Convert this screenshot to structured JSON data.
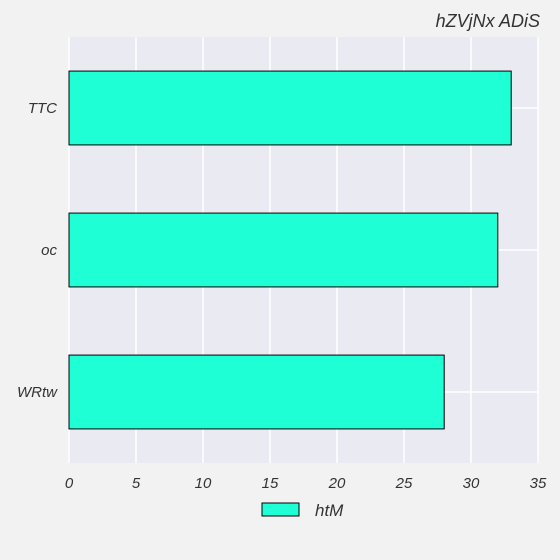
{
  "chart_data": {
    "type": "bar",
    "orientation": "horizontal",
    "title": "hZVjNx ADiS",
    "xlabel": "",
    "ylabel": "",
    "categories": [
      "TTC",
      "oc",
      "WRtw"
    ],
    "series": [
      {
        "name": "htM",
        "values": [
          33,
          32,
          28
        ],
        "color": "#1fffd5"
      }
    ],
    "xlim": [
      0,
      35
    ],
    "xticks": [
      0,
      5,
      10,
      15,
      20,
      25,
      30,
      35
    ],
    "grid": true,
    "legend_position": "bottom-center",
    "plot_background": "#eaeaf2",
    "grid_color": "#ffffff"
  }
}
